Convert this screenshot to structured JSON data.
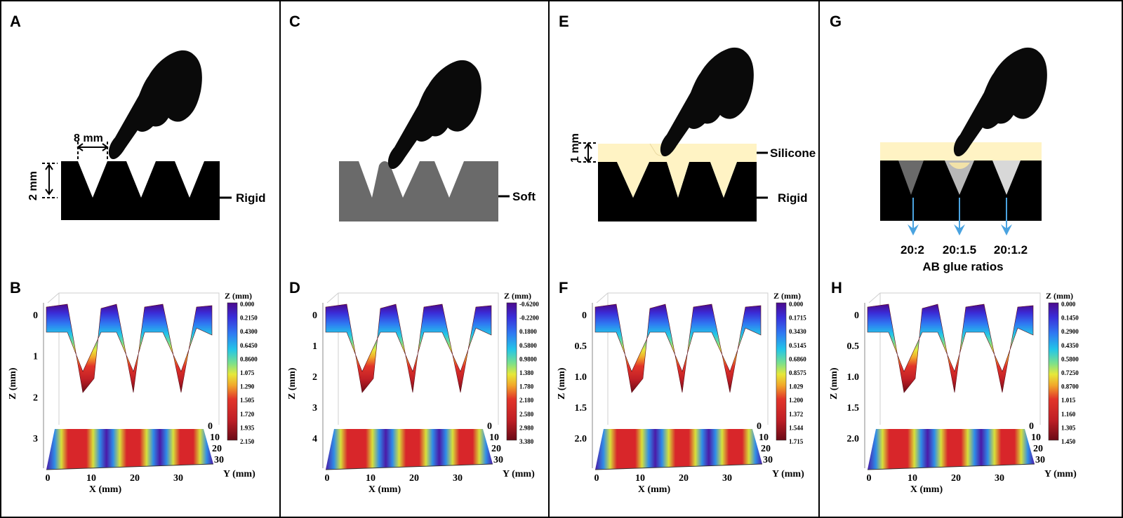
{
  "colors": {
    "rigid": "#000000",
    "soft": "#6a6a6a",
    "silicone": "#fff3c4",
    "arrow": "#4aa3e0",
    "frame": "#000000"
  },
  "icons": {
    "finger": "pointing-hand-icon",
    "arrow": "double-headed-arrow-icon",
    "down_arrow": "arrow-down-icon"
  },
  "panels": {
    "A": {
      "letter": "A",
      "dim_width": "8 mm",
      "dim_height": "2 mm",
      "material": "Rigid"
    },
    "C": {
      "letter": "C",
      "material": "Soft"
    },
    "E": {
      "letter": "E",
      "dim_height": "1 mm",
      "top_material": "Silicone",
      "material": "Rigid"
    },
    "G": {
      "letter": "G",
      "ratios": [
        "20:2",
        "20:1.5",
        "20:1.2"
      ],
      "caption": "AB glue ratios"
    }
  },
  "charts": [
    {
      "letter": "B",
      "z_ticks": [
        "0",
        "1",
        "2",
        "3"
      ],
      "colorbar_title": "Z (mm)",
      "colorbar_labels": [
        "0.000",
        "0.2150",
        "0.4300",
        "0.6450",
        "0.8600",
        "1.075",
        "1.290",
        "1.505",
        "1.720",
        "1.935",
        "2.150"
      ]
    },
    {
      "letter": "D",
      "z_ticks": [
        "0",
        "1",
        "2",
        "3",
        "4"
      ],
      "colorbar_title": "Z (mm)",
      "colorbar_labels": [
        "-0.6200",
        "-0.2200",
        "0.1800",
        "0.5800",
        "0.9800",
        "1.380",
        "1.780",
        "2.180",
        "2.580",
        "2.980",
        "3.380"
      ]
    },
    {
      "letter": "F",
      "z_ticks": [
        "0",
        "0.5",
        "1.0",
        "1.5",
        "2.0"
      ],
      "colorbar_title": "Z (mm)",
      "colorbar_labels": [
        "0.000",
        "0.1715",
        "0.3430",
        "0.5145",
        "0.6860",
        "0.8575",
        "1.029",
        "1.200",
        "1.372",
        "1.544",
        "1.715"
      ]
    },
    {
      "letter": "H",
      "z_ticks": [
        "0",
        "0.5",
        "1.0",
        "1.5",
        "2.0"
      ],
      "colorbar_title": "Z (mm)",
      "colorbar_labels": [
        "0.000",
        "0.1450",
        "0.2900",
        "0.4350",
        "0.5800",
        "0.7250",
        "0.8700",
        "1.015",
        "1.160",
        "1.305",
        "1.450"
      ]
    }
  ],
  "axes": {
    "z_label": "Z (mm)",
    "x_label": "X (mm)",
    "y_label": "Y (mm)",
    "x_ticks": [
      "0",
      "10",
      "20",
      "30"
    ],
    "y_ticks": [
      "0",
      "10",
      "20",
      "30"
    ]
  }
}
